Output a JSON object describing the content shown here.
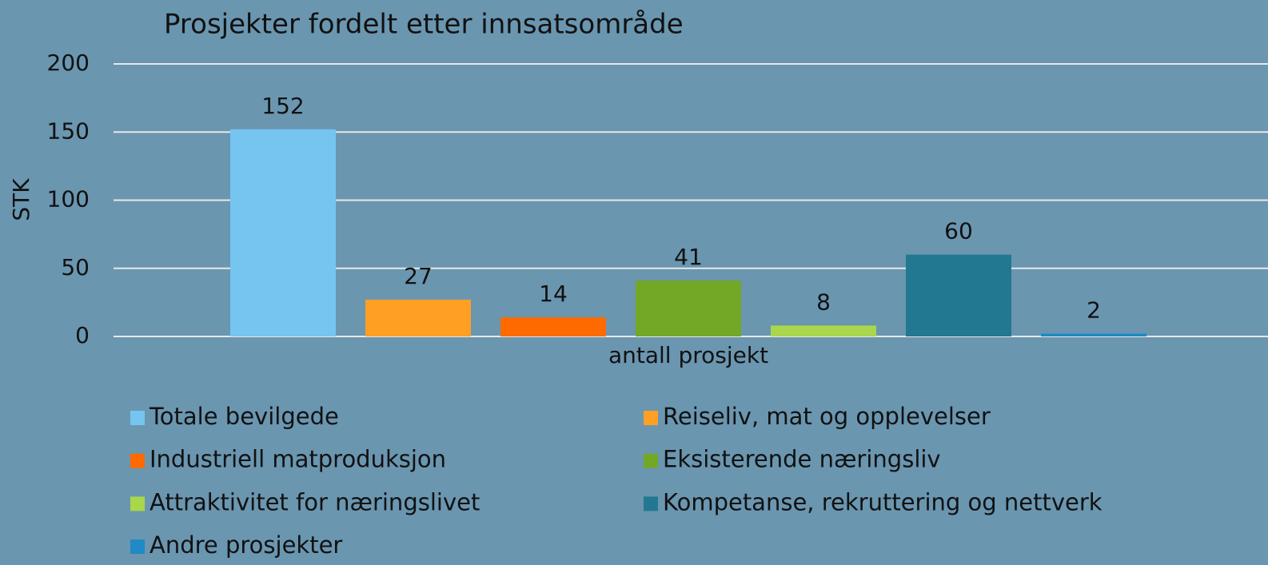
{
  "chart_data": {
    "type": "bar",
    "title": "Prosjekter fordelt etter innsatsområde",
    "y_label": "STK",
    "categories": [
      "antall prosjekt"
    ],
    "series": [
      {
        "name": "Totale bevilgede",
        "color": "#75c5f0",
        "values": [
          152
        ]
      },
      {
        "name": "Reiseliv, mat og opplevelser",
        "color": "#ffa024",
        "values": [
          27
        ]
      },
      {
        "name": "Industriell matproduksjon",
        "color": "#ff6a00",
        "values": [
          14
        ]
      },
      {
        "name": "Eksisterende næringsliv",
        "color": "#72a826",
        "values": [
          41
        ]
      },
      {
        "name": "Attraktivitet for næringslivet",
        "color": "#a9d64a",
        "values": [
          8
        ]
      },
      {
        "name": "Kompetanse, rekruttering og nettverk",
        "color": "#227890",
        "values": [
          60
        ]
      },
      {
        "name": "Andre prosjekter",
        "color": "#1f8ac5",
        "values": [
          2
        ]
      }
    ],
    "ylim": [
      0,
      200
    ],
    "yticks": [
      0,
      50,
      100,
      150,
      200
    ],
    "grid": true,
    "legend": "bottom"
  }
}
